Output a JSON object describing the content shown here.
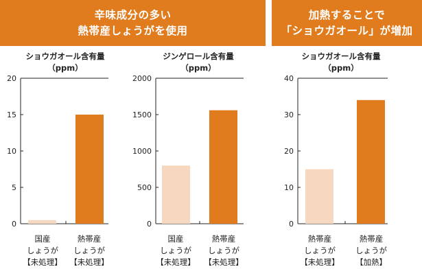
{
  "header": {
    "left": {
      "line1": "辛味成分の多い",
      "line2": "熱帯産しょうがを使用"
    },
    "right": {
      "line1": "加熱することで",
      "line2": "「ショウガオール」が増加"
    }
  },
  "colors": {
    "banner": "#e07b1e",
    "bar_light": "#f5d8bf",
    "bar_dark": "#e07b1e"
  },
  "chart_data": [
    {
      "type": "bar",
      "title": "ショウガオール含有量",
      "unit": "（ppm）",
      "ylim": [
        0,
        20
      ],
      "yticks": [
        "0",
        "5",
        "10",
        "15",
        "20"
      ],
      "categories": [
        [
          "国産",
          "しょうが",
          "【未処理】"
        ],
        [
          "熱帯産",
          "しょうが",
          "【未処理】"
        ]
      ],
      "values": [
        0.5,
        15
      ],
      "colors": [
        "#f5d8bf",
        "#e07b1e"
      ]
    },
    {
      "type": "bar",
      "title": "ジンゲロール含有量",
      "unit": "（ppm）",
      "ylim": [
        0,
        2000
      ],
      "yticks": [
        "0",
        "500",
        "1000",
        "1500",
        "2000"
      ],
      "categories": [
        [
          "国産",
          "しょうが",
          "【未処理】"
        ],
        [
          "熱帯産",
          "しょうが",
          "【未処理】"
        ]
      ],
      "values": [
        800,
        1560
      ],
      "colors": [
        "#f5d8bf",
        "#e07b1e"
      ]
    },
    {
      "type": "bar",
      "title": "ショウガオール含有量",
      "unit": "（ppm）",
      "ylim": [
        0,
        40
      ],
      "yticks": [
        "0",
        "10",
        "20",
        "30",
        "40"
      ],
      "categories": [
        [
          "熱帯産",
          "しょうが",
          "【未処理】"
        ],
        [
          "熱帯産",
          "しょうが",
          "【加熱】"
        ]
      ],
      "values": [
        15,
        34
      ],
      "colors": [
        "#f5d8bf",
        "#e07b1e"
      ]
    }
  ]
}
